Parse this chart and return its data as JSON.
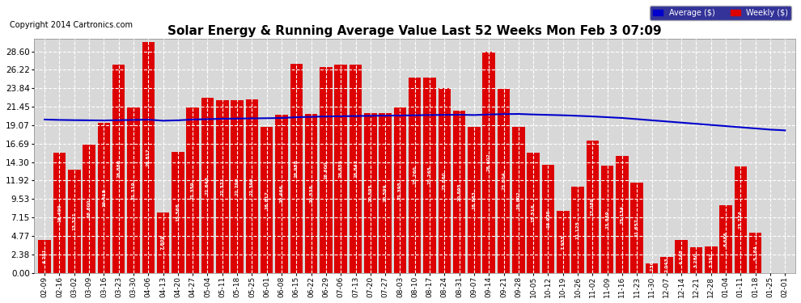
{
  "title": "Solar Energy & Running Average Value Last 52 Weeks Mon Feb 3 07:09",
  "copyright": "Copyright 2014 Cartronics.com",
  "legend_avg": "Average ($)",
  "legend_weekly": "Weekly ($)",
  "bar_color": "#dd0000",
  "avg_line_color": "#0000cc",
  "background_color": "#ffffff",
  "plot_bg_color": "#d8d8d8",
  "grid_color": "#ffffff",
  "yticks": [
    0.0,
    2.38,
    4.77,
    7.15,
    9.53,
    11.92,
    14.3,
    16.69,
    19.07,
    21.45,
    23.84,
    26.22,
    28.6
  ],
  "ylim": [
    0,
    30.2
  ],
  "categories": [
    "02-09",
    "02-16",
    "03-02",
    "03-09",
    "03-16",
    "03-23",
    "03-30",
    "04-06",
    "04-13",
    "04-20",
    "04-27",
    "05-04",
    "05-11",
    "05-18",
    "05-25",
    "06-01",
    "06-08",
    "06-15",
    "06-22",
    "06-29",
    "07-06",
    "07-13",
    "07-20",
    "07-27",
    "08-03",
    "08-10",
    "08-17",
    "08-24",
    "08-31",
    "09-07",
    "09-14",
    "09-21",
    "09-28",
    "10-05",
    "10-12",
    "10-19",
    "10-26",
    "11-02",
    "11-09",
    "11-16",
    "11-23",
    "11-30",
    "12-07",
    "12-14",
    "12-21",
    "12-28",
    "01-04",
    "01-11",
    "01-18",
    "01-25",
    "02-01"
  ],
  "values": [
    4.291,
    15.499,
    13.321,
    16.6,
    19.418,
    26.88,
    21.319,
    29.817,
    7.809,
    15.568,
    21.359,
    22.646,
    22.321,
    22.296,
    22.396,
    18.817,
    20.466,
    26.988,
    20.538,
    26.6,
    26.855,
    26.842,
    20.595,
    20.599,
    21.395,
    25.26,
    25.265,
    23.86,
    20.895,
    18.883,
    28.602,
    23.804,
    18.802,
    15.516,
    13.925,
    7.955,
    11.125,
    17.089,
    13.839,
    15.134,
    11.657,
    1.236,
    2.043,
    4.248,
    3.28,
    3.392,
    8.686,
    13.774,
    5.184,
    0.0,
    0.0
  ],
  "avg_values": [
    19.8,
    19.75,
    19.72,
    19.7,
    19.68,
    19.72,
    19.75,
    19.78,
    19.65,
    19.7,
    19.8,
    19.85,
    19.9,
    19.92,
    19.95,
    19.97,
    20.0,
    20.1,
    20.15,
    20.2,
    20.22,
    20.25,
    20.28,
    20.3,
    20.32,
    20.35,
    20.38,
    20.4,
    20.42,
    20.38,
    20.45,
    20.5,
    20.52,
    20.45,
    20.4,
    20.35,
    20.28,
    20.2,
    20.1,
    20.0,
    19.85,
    19.7,
    19.55,
    19.4,
    19.25,
    19.1,
    18.95,
    18.8,
    18.65,
    18.5,
    18.4
  ]
}
